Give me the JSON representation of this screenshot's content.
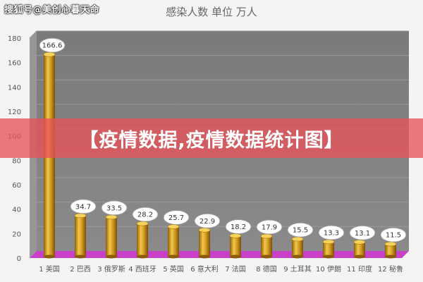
{
  "watermark": "搜狐号@美创心暮天命",
  "banner_text": "【疫情数据,疫情数据统计图】",
  "colors": {
    "plot_back": "#7f7f7f",
    "plot_side": "#969696",
    "floor": "#c840c8",
    "bar_gold": "#c8921a",
    "grid": "#9a9a9a"
  },
  "chart_data": {
    "type": "bar",
    "title": "感染人数 单位 万人",
    "xlabel": "",
    "ylabel": "",
    "ylim": [
      0,
      180
    ],
    "yticks": [
      0,
      20,
      40,
      60,
      80,
      100,
      120,
      140,
      160,
      180
    ],
    "grid": true,
    "categories": [
      "1 美国",
      "2 巴西",
      "3 俄罗斯",
      "4 西班牙",
      "5 英国",
      "6 意大利",
      "7 法国",
      "8 德国",
      "9 土耳其",
      "10 伊朗",
      "11 印度",
      "12 秘鲁"
    ],
    "values": [
      166.6,
      34.7,
      33.5,
      28.2,
      25.7,
      22.9,
      18.2,
      17.9,
      15.5,
      13.3,
      13.1,
      11.5
    ],
    "data_labels": [
      "166.6",
      "34.7",
      "33.5",
      "28.2",
      "25.7",
      "22.9",
      "18.2",
      "17.9",
      "15.5",
      "13.3",
      "13.1",
      "11.5"
    ]
  }
}
